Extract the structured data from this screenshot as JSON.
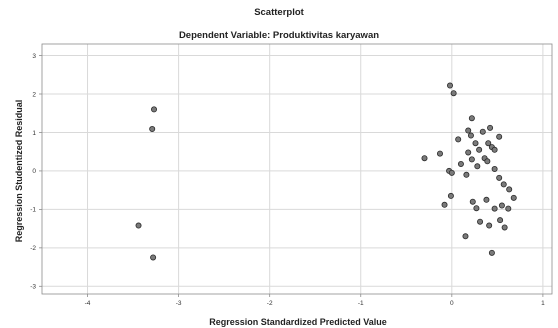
{
  "chart_data": {
    "type": "scatter",
    "title": "Scatterplot",
    "subtitle": "Dependent Variable: Produktivitas karyawan",
    "xlabel": "Regression Standardized Predicted Value",
    "ylabel": "Regression Studentized Residual",
    "xlim": [
      -4.5,
      1.1
    ],
    "ylim": [
      -3.2,
      3.3
    ],
    "xticks": [
      -4,
      -3,
      -2,
      -1,
      0,
      1
    ],
    "yticks": [
      -3,
      -2,
      -1,
      0,
      1,
      2,
      3
    ],
    "grid": true,
    "points": [
      {
        "x": -3.27,
        "y": 1.6
      },
      {
        "x": -3.29,
        "y": 1.09
      },
      {
        "x": -3.44,
        "y": -1.42
      },
      {
        "x": -3.28,
        "y": -2.25
      },
      {
        "x": -0.02,
        "y": 2.22
      },
      {
        "x": 0.02,
        "y": 2.02
      },
      {
        "x": 0.22,
        "y": 1.37
      },
      {
        "x": 0.42,
        "y": 1.12
      },
      {
        "x": 0.18,
        "y": 1.05
      },
      {
        "x": 0.34,
        "y": 1.02
      },
      {
        "x": 0.07,
        "y": 0.82
      },
      {
        "x": 0.21,
        "y": 0.92
      },
      {
        "x": 0.52,
        "y": 0.89
      },
      {
        "x": 0.26,
        "y": 0.72
      },
      {
        "x": 0.4,
        "y": 0.72
      },
      {
        "x": 0.44,
        "y": 0.62
      },
      {
        "x": 0.3,
        "y": 0.55
      },
      {
        "x": 0.47,
        "y": 0.55
      },
      {
        "x": 0.18,
        "y": 0.48
      },
      {
        "x": -0.13,
        "y": 0.45
      },
      {
        "x": 0.36,
        "y": 0.33
      },
      {
        "x": -0.3,
        "y": 0.33
      },
      {
        "x": 0.22,
        "y": 0.3
      },
      {
        "x": 0.39,
        "y": 0.25
      },
      {
        "x": 0.1,
        "y": 0.18
      },
      {
        "x": 0.28,
        "y": 0.12
      },
      {
        "x": 0.47,
        "y": 0.05
      },
      {
        "x": -0.03,
        "y": 0.0
      },
      {
        "x": 0.0,
        "y": -0.05
      },
      {
        "x": 0.16,
        "y": -0.1
      },
      {
        "x": 0.52,
        "y": -0.18
      },
      {
        "x": 0.57,
        "y": -0.35
      },
      {
        "x": 0.63,
        "y": -0.48
      },
      {
        "x": -0.01,
        "y": -0.65
      },
      {
        "x": 0.68,
        "y": -0.7
      },
      {
        "x": 0.23,
        "y": -0.8
      },
      {
        "x": 0.38,
        "y": -0.75
      },
      {
        "x": -0.08,
        "y": -0.88
      },
      {
        "x": 0.55,
        "y": -0.9
      },
      {
        "x": 0.27,
        "y": -0.97
      },
      {
        "x": 0.47,
        "y": -0.98
      },
      {
        "x": 0.62,
        "y": -0.98
      },
      {
        "x": 0.53,
        "y": -1.28
      },
      {
        "x": 0.31,
        "y": -1.32
      },
      {
        "x": 0.41,
        "y": -1.42
      },
      {
        "x": 0.58,
        "y": -1.47
      },
      {
        "x": 0.15,
        "y": -1.7
      },
      {
        "x": 0.44,
        "y": -2.13
      }
    ]
  }
}
